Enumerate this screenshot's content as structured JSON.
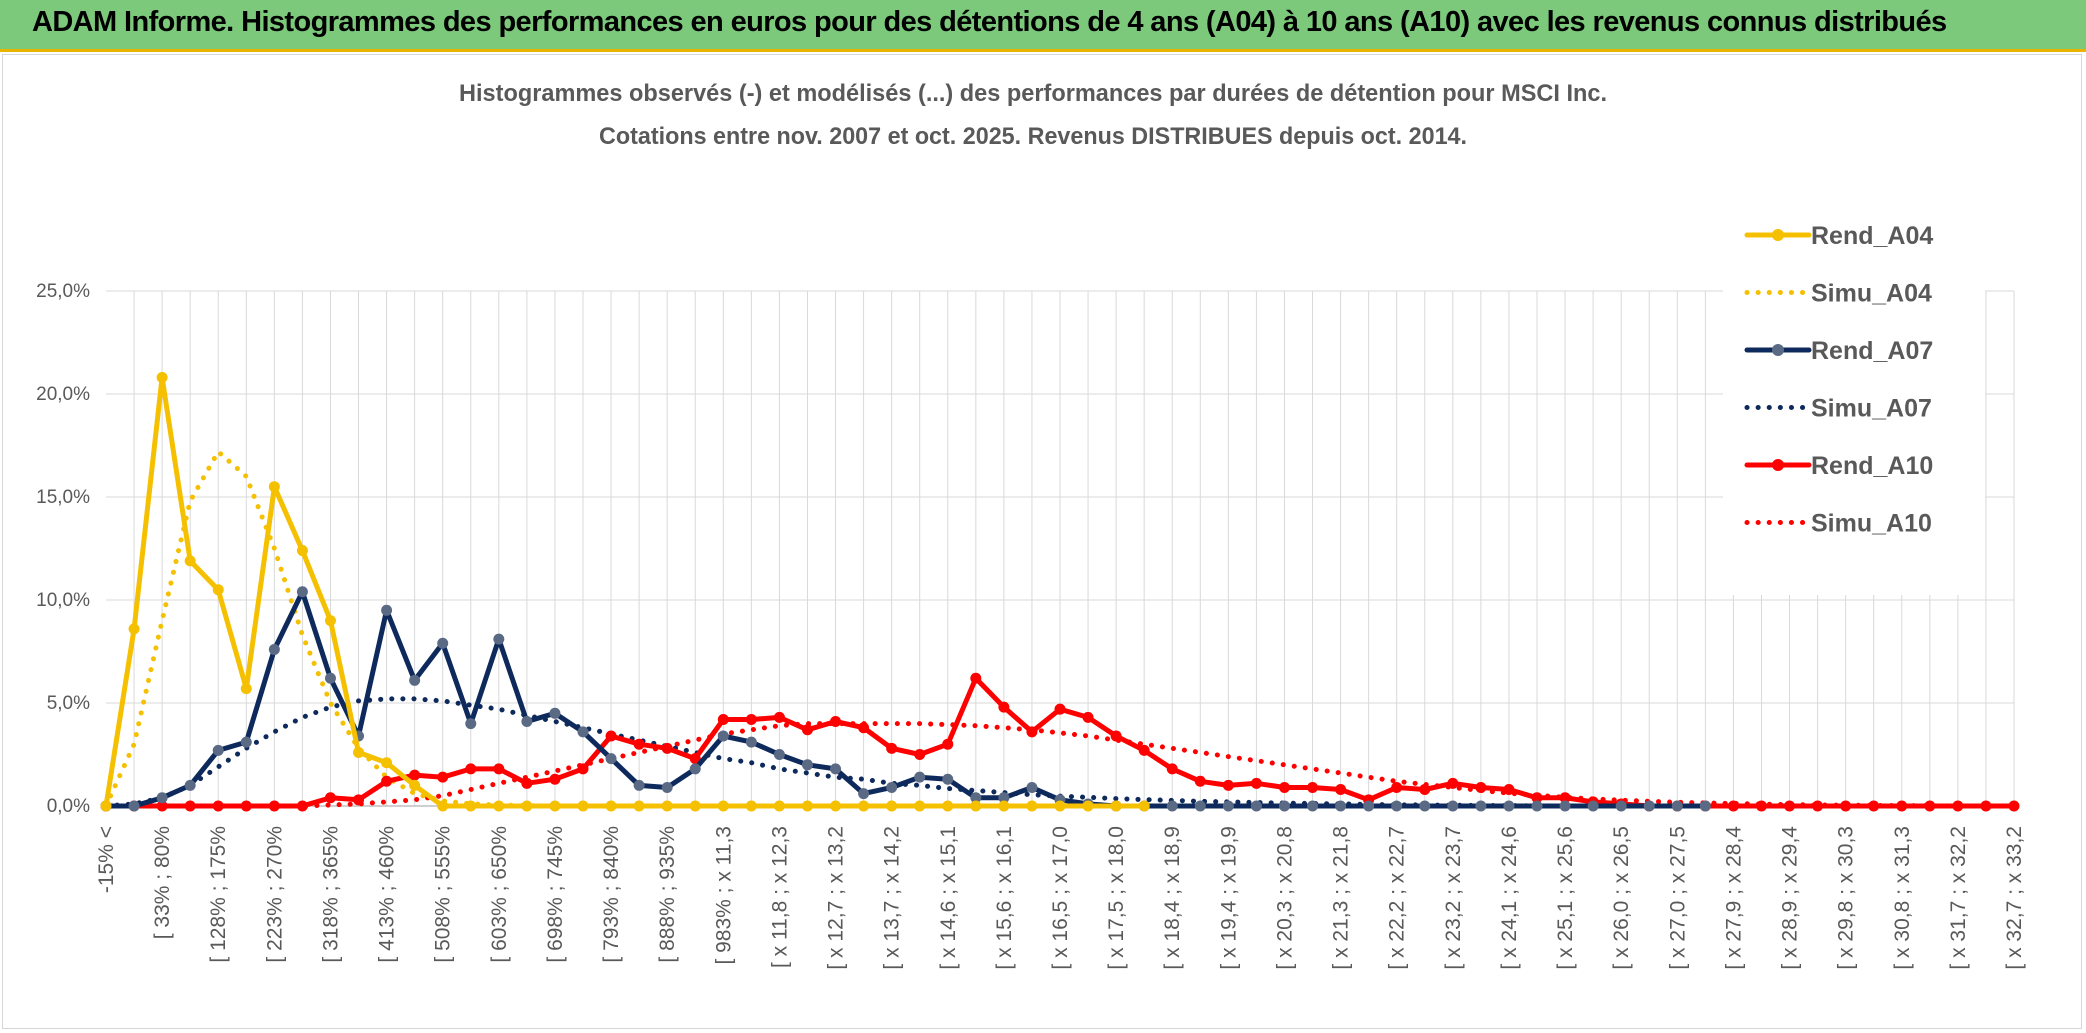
{
  "banner": {
    "title": "ADAM Informe. Histogrammes des performances en euros pour des détentions de 4 ans (A04) à 10 ans (A10) avec les revenus connus distribués"
  },
  "colors": {
    "banner_bg": "#7cc97c",
    "a04": "#f5c000",
    "a07": "#0e2a5c",
    "a07_marker": "#5a6a85",
    "a10": "#ff0000",
    "grid": "#d9d9d9",
    "axis_text": "#595959"
  },
  "chart_data": {
    "type": "line",
    "title": "Histogrammes observés (-) et modélisés (...) des performances par durées de détention pour MSCI Inc.",
    "subtitle": "Cotations entre nov. 2007 et oct. 2025. Revenus DISTRIBUES depuis oct. 2014.",
    "xlabel": "",
    "ylabel": "",
    "ylim": [
      0,
      25
    ],
    "yticks": [
      "0,0%",
      "5,0%",
      "10,0%",
      "15,0%",
      "20,0%",
      "25,0%"
    ],
    "grid": true,
    "legend_position": "right",
    "n_points": 69,
    "x_tick_labels": [
      "-15% <",
      "[ 33% ; 80%",
      "[ 128% ; 175%",
      "[ 223% ; 270%",
      "[ 318% ; 365%",
      "[ 413% ; 460%",
      "[ 508% ; 555%",
      "[ 603% ; 650%",
      "[ 698% ; 745%",
      "[ 793% ; 840%",
      "[ 888% ; 935%",
      "[ 983% ; x 11,3",
      "[ x 11,8 ; x 12,3",
      "[ x 12,7 ; x 13,2",
      "[ x 13,7 ; x 14,2",
      "[ x 14,6 ; x 15,1",
      "[ x 15,6 ; x 16,1",
      "[ x 16,5 ; x 17,0",
      "[ x 17,5 ; x 18,0",
      "[ x 18,4 ; x 18,9",
      "[ x 19,4 ; x 19,9",
      "[ x 20,3 ; x 20,8",
      "[ x 21,3 ; x 21,8",
      "[ x 22,2 ; x 22,7",
      "[ x 23,2 ; x 23,7",
      "[ x 24,1 ; x 24,6",
      "[ x 25,1 ; x 25,6",
      "[ x 26,0 ; x 26,5",
      "[ x 27,0 ; x 27,5",
      "[ x 27,9 ; x 28,4",
      "[ x 28,9 ; x 29,4",
      "[ x 29,8 ; x 30,3",
      "[ x 30,8 ; x 31,3",
      "[ x 31,7 ; x 32,2",
      "[ x 32,7 ; x 33,2"
    ],
    "x_tick_every": 2,
    "series": [
      {
        "name": "Rend_A04",
        "style": "solid",
        "markers": true,
        "start": 0,
        "values": [
          0,
          8.6,
          20.8,
          11.9,
          10.5,
          5.7,
          15.5,
          12.4,
          9.0,
          2.6,
          2.1,
          1.0,
          0,
          0,
          0,
          0,
          0,
          0,
          0,
          0,
          0,
          0,
          0,
          0,
          0,
          0,
          0,
          0,
          0,
          0,
          0,
          0,
          0,
          0,
          0,
          0,
          0,
          0
        ]
      },
      {
        "name": "Simu_A04",
        "style": "dotted",
        "markers": false,
        "start": 0,
        "values": [
          0,
          3.0,
          9.0,
          14.8,
          17.2,
          16.0,
          12.5,
          8.3,
          5.0,
          2.8,
          1.4,
          0.6,
          0.25,
          0.1,
          0.05,
          0.02,
          0,
          0,
          0,
          0,
          0,
          0,
          0,
          0,
          0,
          0,
          0,
          0,
          0,
          0,
          0,
          0,
          0,
          0,
          0,
          0,
          0,
          0
        ]
      },
      {
        "name": "Rend_A07",
        "style": "solid",
        "markers": true,
        "start": 0,
        "values": [
          0,
          0,
          0.4,
          1.0,
          2.7,
          3.1,
          7.6,
          10.4,
          6.2,
          3.4,
          9.5,
          6.1,
          7.9,
          4.0,
          8.1,
          4.1,
          4.5,
          3.6,
          2.3,
          1.0,
          0.9,
          1.8,
          3.4,
          3.1,
          2.5,
          2.0,
          1.8,
          0.6,
          0.9,
          1.4,
          1.3,
          0.4,
          0.4,
          0.9,
          0.3,
          0.1,
          0,
          0,
          0,
          0,
          0,
          0,
          0,
          0,
          0,
          0,
          0,
          0,
          0,
          0,
          0,
          0,
          0,
          0,
          0,
          0,
          0,
          0
        ]
      },
      {
        "name": "Simu_A07",
        "style": "dotted",
        "markers": false,
        "start": 0,
        "values": [
          0,
          0.1,
          0.4,
          1.0,
          1.9,
          2.8,
          3.6,
          4.3,
          4.8,
          5.1,
          5.2,
          5.2,
          5.1,
          4.9,
          4.7,
          4.4,
          4.1,
          3.8,
          3.5,
          3.2,
          2.9,
          2.6,
          2.3,
          2.1,
          1.8,
          1.6,
          1.4,
          1.3,
          1.1,
          1.0,
          0.85,
          0.75,
          0.65,
          0.55,
          0.48,
          0.42,
          0.36,
          0.31,
          0.27,
          0.23,
          0.2,
          0.17,
          0.14,
          0.12,
          0.1,
          0.08,
          0.06,
          0.05,
          0.04,
          0.03,
          0.02,
          0.01,
          0,
          0,
          0,
          0,
          0,
          0
        ]
      },
      {
        "name": "Rend_A10",
        "style": "solid",
        "markers": true,
        "start": 0,
        "values": [
          0,
          0,
          0,
          0,
          0,
          0,
          0,
          0,
          0.4,
          0.3,
          1.2,
          1.5,
          1.4,
          1.8,
          1.8,
          1.1,
          1.3,
          1.8,
          3.4,
          3.0,
          2.8,
          2.3,
          4.2,
          4.2,
          4.3,
          3.7,
          4.1,
          3.8,
          2.8,
          2.5,
          3.0,
          6.2,
          4.8,
          3.6,
          4.7,
          4.3,
          3.4,
          2.7,
          1.8,
          1.2,
          1.0,
          1.1,
          0.9,
          0.9,
          0.8,
          0.3,
          0.9,
          0.8,
          1.1,
          0.9,
          0.8,
          0.4,
          0.4,
          0.2,
          0.1,
          0,
          0,
          0,
          0,
          0,
          0,
          0,
          0,
          0,
          0,
          0,
          0,
          0,
          0
        ]
      },
      {
        "name": "Simu_A10",
        "style": "dotted",
        "markers": false,
        "start": 0,
        "values": [
          0,
          0,
          0,
          0,
          0,
          0,
          0,
          0,
          0.05,
          0.1,
          0.2,
          0.3,
          0.5,
          0.8,
          1.1,
          1.4,
          1.7,
          2.0,
          2.3,
          2.6,
          2.9,
          3.2,
          3.5,
          3.7,
          3.9,
          4.0,
          4.0,
          4.0,
          4.0,
          4.0,
          3.95,
          3.9,
          3.8,
          3.7,
          3.55,
          3.4,
          3.2,
          3.0,
          2.8,
          2.6,
          2.4,
          2.2,
          2.0,
          1.8,
          1.6,
          1.4,
          1.2,
          1.05,
          0.9,
          0.75,
          0.62,
          0.52,
          0.42,
          0.34,
          0.28,
          0.23,
          0.18,
          0.15,
          0.12,
          0.09,
          0.07,
          0.05,
          0.04,
          0.03,
          0.02,
          0.01,
          0,
          0,
          0
        ]
      }
    ]
  }
}
